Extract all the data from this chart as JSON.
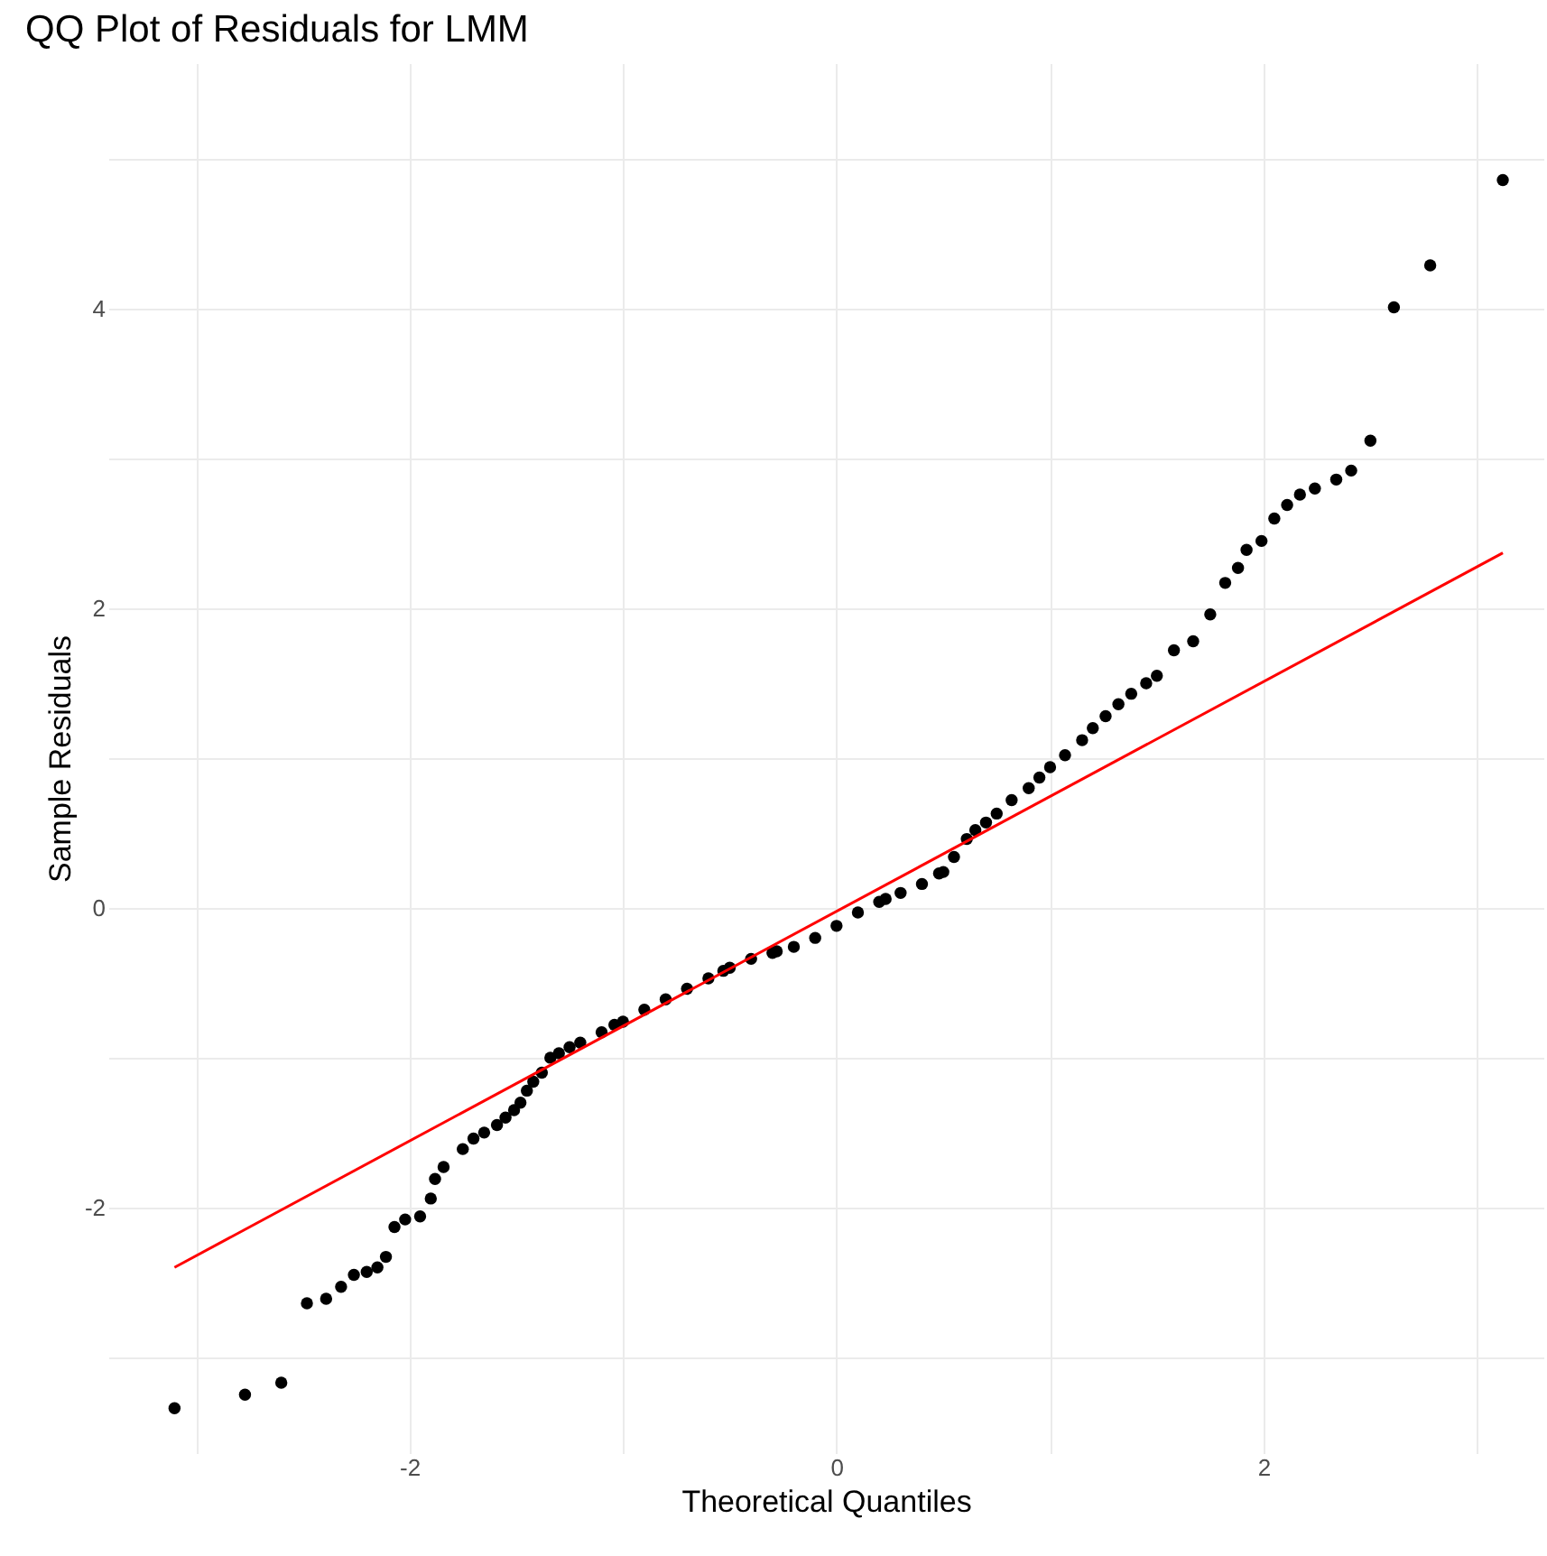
{
  "chart_data": {
    "type": "scatter",
    "title": "QQ Plot of Residuals for LMM",
    "xlabel": "Theoretical Quantiles",
    "ylabel": "Sample Residuals",
    "xlim": [
      -3.41,
      3.31
    ],
    "ylim": [
      -3.64,
      5.64
    ],
    "xticks": [
      {
        "value": -3,
        "label": null
      },
      -2,
      {
        "value": -1,
        "label": null
      },
      0,
      {
        "value": 1,
        "label": null
      },
      2,
      {
        "value": 3,
        "label": null
      }
    ],
    "yticks": [
      {
        "value": -3,
        "label": null
      },
      -2,
      {
        "value": -1,
        "label": null
      },
      0,
      {
        "value": 1,
        "label": null
      },
      2,
      {
        "value": 3,
        "label": null
      },
      4,
      {
        "value": 5,
        "label": null
      }
    ],
    "grid": true,
    "series": [
      {
        "color": "#000000",
        "marker": "circle",
        "x": [
          -3.1,
          -2.77,
          -2.6,
          -2.48,
          -2.39,
          -2.32,
          -2.26,
          -2.2,
          -2.15,
          -2.11,
          -2.07,
          -2.02,
          -1.95,
          -1.9,
          -1.88,
          -1.84,
          -1.75,
          -1.7,
          -1.65,
          -1.59,
          -1.55,
          -1.51,
          -1.48,
          -1.45,
          -1.42,
          -1.38,
          -1.34,
          -1.3,
          -1.25,
          -1.2,
          -1.1,
          -1.04,
          -1.0,
          -0.9,
          -0.8,
          -0.7,
          -0.6,
          -0.53,
          -0.5,
          -0.4,
          -0.3,
          -0.28,
          -0.2,
          -0.1,
          0,
          0.1,
          0.2,
          0.23,
          0.3,
          0.4,
          0.48,
          0.5,
          0.55,
          0.61,
          0.65,
          0.7,
          0.75,
          0.82,
          0.9,
          0.95,
          1.0,
          1.07,
          1.15,
          1.2,
          1.26,
          1.32,
          1.38,
          1.45,
          1.5,
          1.58,
          1.67,
          1.75,
          1.82,
          1.88,
          1.92,
          1.99,
          2.05,
          2.11,
          2.17,
          2.24,
          2.34,
          2.41,
          2.5,
          2.61,
          2.78,
          3.12
        ],
        "values": [
          -3.34,
          -3.25,
          -3.17,
          -2.64,
          -2.61,
          -2.53,
          -2.45,
          -2.43,
          -2.4,
          -2.33,
          -2.13,
          -2.08,
          -2.06,
          -1.94,
          -1.81,
          -1.73,
          -1.61,
          -1.54,
          -1.5,
          -1.45,
          -1.4,
          -1.35,
          -1.3,
          -1.22,
          -1.16,
          -1.1,
          -1.0,
          -0.97,
          -0.93,
          -0.9,
          -0.83,
          -0.78,
          -0.76,
          -0.68,
          -0.61,
          -0.54,
          -0.47,
          -0.42,
          -0.4,
          -0.34,
          -0.3,
          -0.29,
          -0.26,
          -0.2,
          -0.12,
          -0.03,
          0.04,
          0.06,
          0.1,
          0.16,
          0.23,
          0.24,
          0.34,
          0.46,
          0.52,
          0.57,
          0.63,
          0.72,
          0.8,
          0.87,
          0.94,
          1.02,
          1.12,
          1.2,
          1.28,
          1.36,
          1.43,
          1.5,
          1.55,
          1.72,
          1.78,
          1.96,
          2.17,
          2.27,
          2.39,
          2.45,
          2.6,
          2.69,
          2.76,
          2.8,
          2.86,
          2.92,
          3.12,
          4.01,
          4.29,
          4.86
        ]
      },
      {
        "type": "line",
        "color": "#ff0000",
        "marker": "none",
        "x": [
          -3.1,
          3.12
        ],
        "values": [
          -2.4,
          2.37
        ]
      }
    ]
  }
}
